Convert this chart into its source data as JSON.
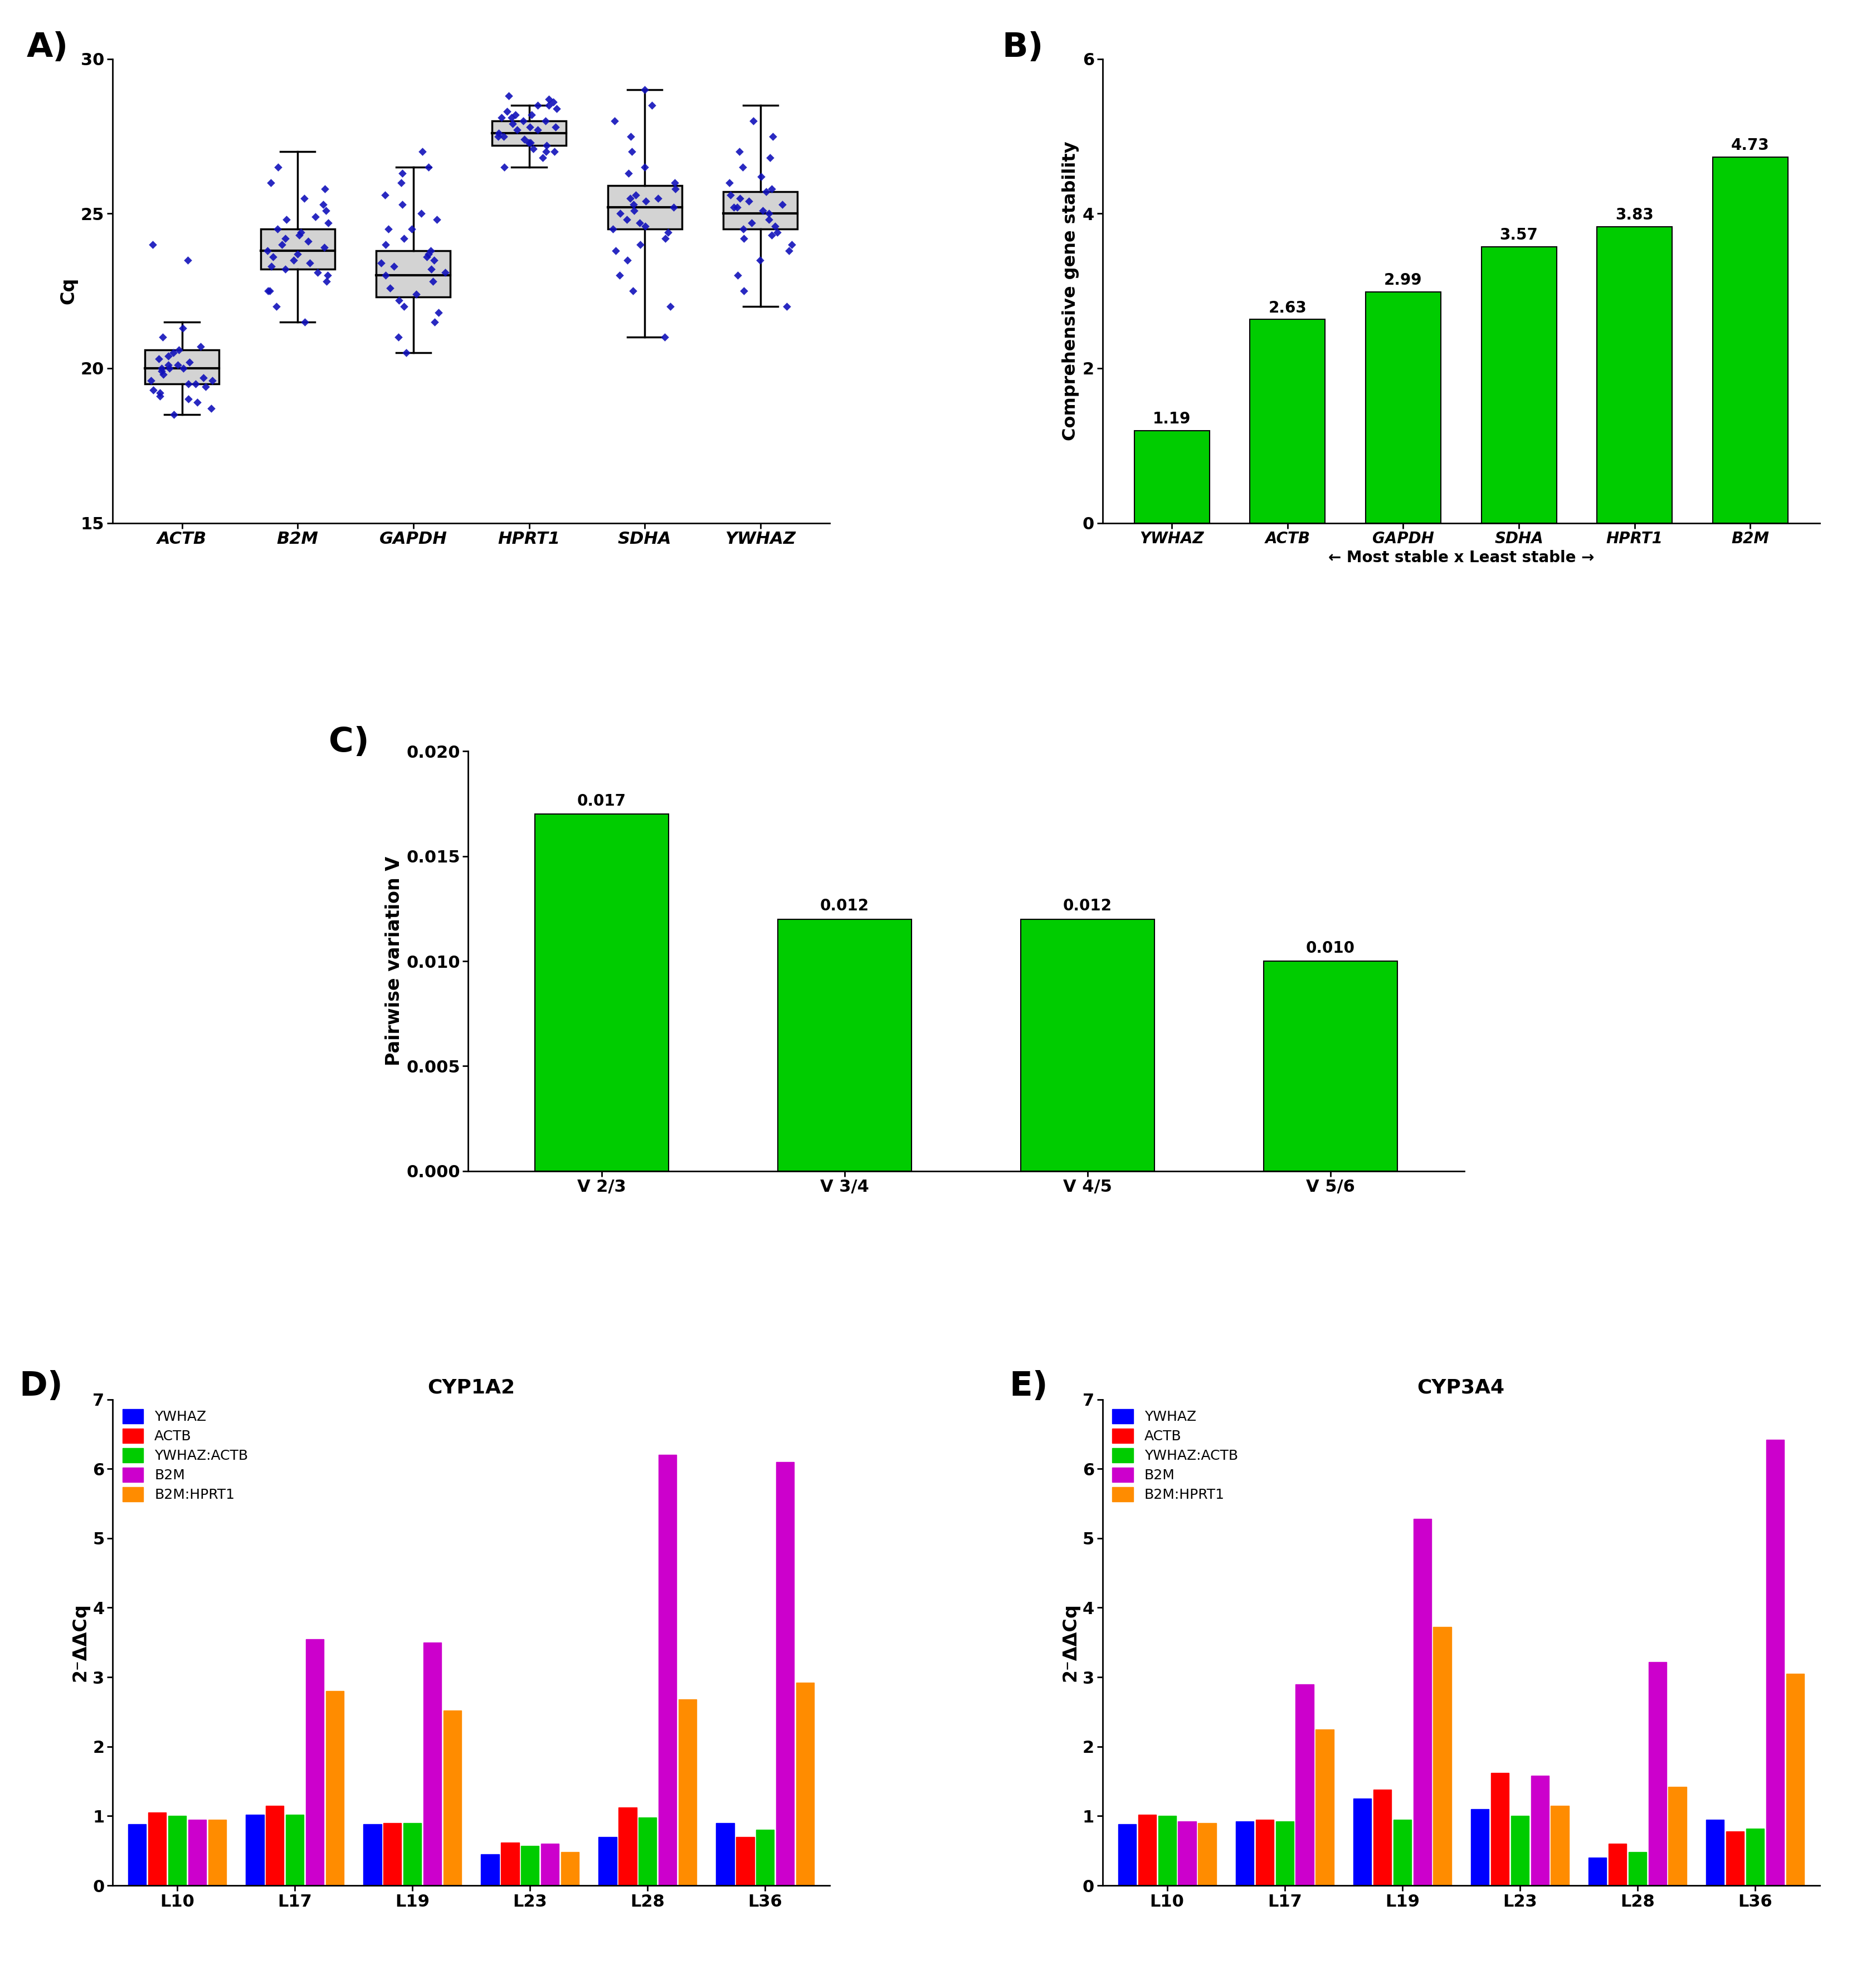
{
  "panel_A": {
    "ylabel": "Cq",
    "ylim": [
      15,
      30
    ],
    "yticks": [
      15,
      20,
      25,
      30
    ],
    "genes": [
      "ACTB",
      "B2M",
      "GAPDH",
      "HPRT1",
      "SDHA",
      "YWHAZ"
    ],
    "box_data": {
      "ACTB": {
        "q1": 19.5,
        "median": 20.0,
        "q3": 20.6,
        "whisker_low": 18.5,
        "whisker_high": 21.5
      },
      "B2M": {
        "q1": 23.2,
        "median": 23.8,
        "q3": 24.5,
        "whisker_low": 21.5,
        "whisker_high": 27.0
      },
      "GAPDH": {
        "q1": 22.3,
        "median": 23.0,
        "q3": 23.8,
        "whisker_low": 20.5,
        "whisker_high": 26.5
      },
      "HPRT1": {
        "q1": 27.2,
        "median": 27.6,
        "q3": 28.0,
        "whisker_low": 26.5,
        "whisker_high": 28.5
      },
      "SDHA": {
        "q1": 24.5,
        "median": 25.2,
        "q3": 25.9,
        "whisker_low": 21.0,
        "whisker_high": 29.0
      },
      "YWHAZ": {
        "q1": 24.5,
        "median": 25.0,
        "q3": 25.7,
        "whisker_low": 22.0,
        "whisker_high": 28.5
      }
    },
    "scatter_data": {
      "ACTB": [
        18.5,
        18.7,
        18.9,
        19.0,
        19.1,
        19.2,
        19.3,
        19.4,
        19.5,
        19.5,
        19.6,
        19.6,
        19.7,
        19.8,
        19.9,
        20.0,
        20.0,
        20.0,
        20.1,
        20.1,
        20.2,
        20.3,
        20.4,
        20.5,
        20.6,
        20.7,
        21.0,
        21.3,
        23.5,
        24.0
      ],
      "B2M": [
        21.5,
        22.0,
        22.5,
        22.8,
        23.0,
        23.1,
        23.2,
        23.3,
        23.4,
        23.5,
        23.6,
        23.7,
        23.8,
        23.9,
        24.0,
        24.1,
        24.2,
        24.3,
        24.4,
        24.5,
        24.7,
        24.9,
        25.1,
        25.3,
        25.5,
        25.8,
        26.0,
        26.5,
        22.5,
        24.8
      ],
      "GAPDH": [
        20.5,
        21.0,
        21.5,
        22.0,
        22.2,
        22.4,
        22.6,
        22.8,
        23.0,
        23.1,
        23.2,
        23.3,
        23.4,
        23.5,
        23.6,
        23.7,
        23.8,
        24.0,
        24.2,
        24.5,
        24.8,
        25.0,
        25.3,
        25.6,
        26.0,
        26.3,
        26.5,
        27.0,
        21.8,
        24.5
      ],
      "HPRT1": [
        26.5,
        26.8,
        27.0,
        27.1,
        27.2,
        27.3,
        27.3,
        27.4,
        27.5,
        27.5,
        27.6,
        27.7,
        27.7,
        27.8,
        27.8,
        27.9,
        28.0,
        28.0,
        28.1,
        28.1,
        28.2,
        28.3,
        28.4,
        28.5,
        28.5,
        28.6,
        28.7,
        28.8,
        27.0,
        28.2
      ],
      "SDHA": [
        21.0,
        22.0,
        22.5,
        23.0,
        23.5,
        24.0,
        24.2,
        24.4,
        24.5,
        24.6,
        24.7,
        24.8,
        25.0,
        25.1,
        25.2,
        25.3,
        25.4,
        25.5,
        25.6,
        25.8,
        26.0,
        26.3,
        26.5,
        27.0,
        27.5,
        28.0,
        28.5,
        29.0,
        23.8,
        25.5
      ],
      "YWHAZ": [
        22.0,
        22.5,
        23.0,
        23.5,
        24.0,
        24.2,
        24.3,
        24.4,
        24.5,
        24.6,
        24.7,
        24.8,
        25.0,
        25.1,
        25.2,
        25.3,
        25.4,
        25.5,
        25.6,
        25.7,
        25.8,
        26.0,
        26.2,
        26.5,
        26.8,
        27.0,
        27.5,
        28.0,
        23.8,
        25.2
      ]
    }
  },
  "panel_B": {
    "ylabel": "Comprehensive gene stability",
    "ylim": [
      0,
      6
    ],
    "yticks": [
      0,
      2,
      4,
      6
    ],
    "categories": [
      "YWHAZ",
      "ACTB",
      "GAPDH",
      "SDHA",
      "HPRT1",
      "B2M"
    ],
    "values": [
      1.19,
      2.63,
      2.99,
      3.57,
      3.83,
      4.73
    ],
    "xlabel": "← Most stable x Least stable →",
    "bar_color": "#00CC00",
    "bar_edge_color": "#000000"
  },
  "panel_C": {
    "ylabel": "Pairwise variation V",
    "ylim": [
      0,
      0.02
    ],
    "yticks": [
      0.0,
      0.005,
      0.01,
      0.015,
      0.02
    ],
    "ytick_labels": [
      "0.000",
      "0.005",
      "0.010",
      "0.015",
      "0.020"
    ],
    "categories": [
      "V 2/3",
      "V 3/4",
      "V 4/5",
      "V 5/6"
    ],
    "values": [
      0.017,
      0.012,
      0.012,
      0.01
    ],
    "bar_color": "#00CC00",
    "bar_edge_color": "#000000"
  },
  "panel_D": {
    "title": "CYP1A2",
    "ylabel": "2⁻ΔΔCq",
    "ylim": [
      0,
      7
    ],
    "yticks": [
      0,
      1,
      2,
      3,
      4,
      5,
      6,
      7
    ],
    "groups": [
      "L10",
      "L17",
      "L19",
      "L23",
      "L28",
      "L36"
    ],
    "series": {
      "YWHAZ": [
        0.88,
        1.02,
        0.88,
        0.45,
        0.7,
        0.9
      ],
      "ACTB": [
        1.05,
        1.15,
        0.9,
        0.62,
        1.12,
        0.7
      ],
      "YWHAZ:ACTB": [
        1.0,
        1.02,
        0.9,
        0.57,
        0.98,
        0.8
      ],
      "B2M": [
        0.95,
        3.55,
        3.5,
        0.6,
        6.2,
        6.1
      ],
      "B2M:HPRT1": [
        0.95,
        2.8,
        2.52,
        0.48,
        2.68,
        2.92
      ]
    },
    "colors": {
      "YWHAZ": "#0000FF",
      "ACTB": "#FF0000",
      "YWHAZ:ACTB": "#00CC00",
      "B2M": "#CC00CC",
      "B2M:HPRT1": "#FF8C00"
    }
  },
  "panel_E": {
    "title": "CYP3A4",
    "ylabel": "2⁻ΔΔCq",
    "ylim": [
      0,
      7
    ],
    "yticks": [
      0,
      1,
      2,
      3,
      4,
      5,
      6,
      7
    ],
    "groups": [
      "L10",
      "L17",
      "L19",
      "L23",
      "L28",
      "L36"
    ],
    "series": {
      "YWHAZ": [
        0.88,
        0.92,
        1.25,
        1.1,
        0.4,
        0.95
      ],
      "ACTB": [
        1.02,
        0.95,
        1.38,
        1.62,
        0.6,
        0.78
      ],
      "YWHAZ:ACTB": [
        1.0,
        0.92,
        0.95,
        1.0,
        0.48,
        0.82
      ],
      "B2M": [
        0.92,
        2.9,
        5.28,
        1.58,
        3.22,
        6.42
      ],
      "B2M:HPRT1": [
        0.9,
        2.25,
        3.72,
        1.15,
        1.42,
        3.05
      ]
    },
    "colors": {
      "YWHAZ": "#0000FF",
      "ACTB": "#FF0000",
      "YWHAZ:ACTB": "#00CC00",
      "B2M": "#CC00CC",
      "B2M:HPRT1": "#FF8C00"
    }
  },
  "tick_fontsize": 22,
  "axis_label_fontsize": 24,
  "annotation_fontsize": 20,
  "panel_label_fontsize": 44,
  "title_fontsize": 26,
  "legend_fontsize": 18
}
